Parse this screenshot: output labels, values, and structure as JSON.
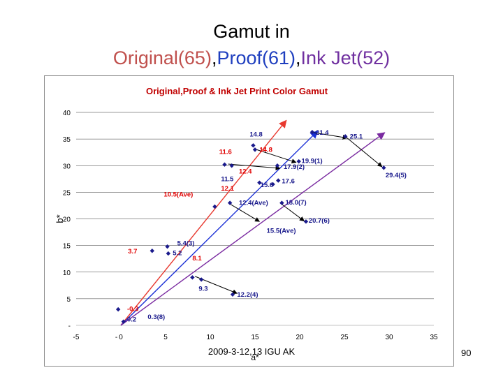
{
  "slide": {
    "title_line1": "Gamut in",
    "title_parts": [
      {
        "text": "Original(65)",
        "color": "#c0504d"
      },
      {
        "text": ",",
        "color": "#000000"
      },
      {
        "text": "Proof(61)",
        "color": "#1f3fbf"
      },
      {
        "text": ",",
        "color": "#000000"
      },
      {
        "text": "Ink Jet(52)",
        "color": "#7030a0"
      }
    ],
    "footer": "2009-3-12,13 IGU AK",
    "page_number": "90"
  },
  "colors": {
    "original": "#e8392f",
    "proof": "#1a2fd6",
    "inkjet": "#7a2aa0",
    "marker": "#1a1a8c",
    "label": "#1a1a8c",
    "label_red": "#e00000",
    "chart_title": "#c00000"
  },
  "chart_data": {
    "type": "scatter",
    "title": "Original,Proof & Ink Jet Print Color Gamut",
    "xlabel": "a*",
    "ylabel": "b*",
    "xlim": [
      -5,
      35
    ],
    "ylim": [
      0,
      40
    ],
    "xticks": [
      "-5",
      "-",
      "0",
      "5",
      "10",
      "15",
      "20",
      "25",
      "30",
      "35"
    ],
    "xtick_values": [
      -5,
      -0.5,
      0,
      5,
      10,
      15,
      20,
      25,
      30,
      35
    ],
    "yticks": [
      "-",
      "5",
      "10",
      "15",
      "20",
      "25",
      "30",
      "35",
      "40"
    ],
    "ytick_values": [
      0,
      5,
      10,
      15,
      20,
      25,
      30,
      35,
      40
    ],
    "grid": "horizontal",
    "points": [
      {
        "x": -0.3,
        "y": 3.0
      },
      {
        "x": 0.3,
        "y": 0.7
      },
      {
        "x": 3.5,
        "y": 14.0
      },
      {
        "x": 5.2,
        "y": 14.8
      },
      {
        "x": 5.3,
        "y": 13.5
      },
      {
        "x": 8.0,
        "y": 9.0
      },
      {
        "x": 9.0,
        "y": 8.6
      },
      {
        "x": 12.5,
        "y": 5.8
      },
      {
        "x": 10.5,
        "y": 22.3
      },
      {
        "x": 12.2,
        "y": 23.0
      },
      {
        "x": 11.6,
        "y": 30.2
      },
      {
        "x": 12.4,
        "y": 30.0
      },
      {
        "x": 14.8,
        "y": 33.8
      },
      {
        "x": 15.0,
        "y": 33.0
      },
      {
        "x": 15.5,
        "y": 26.8
      },
      {
        "x": 17.0,
        "y": 26.5
      },
      {
        "x": 17.6,
        "y": 27.2
      },
      {
        "x": 18.0,
        "y": 23.0
      },
      {
        "x": 17.5,
        "y": 30.0
      },
      {
        "x": 19.9,
        "y": 30.8
      },
      {
        "x": 21.4,
        "y": 36.3
      },
      {
        "x": 25.1,
        "y": 35.5
      },
      {
        "x": 29.4,
        "y": 29.6
      },
      {
        "x": 20.7,
        "y": 19.5
      }
    ],
    "lines": [
      {
        "series": "original",
        "x": [
          0.0,
          18.5
        ],
        "y": [
          0.0,
          38.5
        ]
      },
      {
        "series": "proof",
        "x": [
          0.0,
          22.0
        ],
        "y": [
          0.0,
          36.5
        ]
      },
      {
        "series": "inkjet",
        "x": [
          0.0,
          29.5
        ],
        "y": [
          0.0,
          36.2
        ]
      }
    ],
    "arrows": [
      {
        "x": [
          12.3,
          15.5
        ],
        "y": [
          22.7,
          19.5
        ]
      },
      {
        "x": [
          8.3,
          13.0
        ],
        "y": [
          9.2,
          6.0
        ]
      },
      {
        "x": [
          12.0,
          17.8
        ],
        "y": [
          30.3,
          29.5
        ]
      },
      {
        "x": 0,
        "y": 0,
        "comment": ""
      },
      {
        "x": [
          15.2,
          19.6
        ],
        "y": [
          33.0,
          30.6
        ]
      },
      {
        "x": [
          21.6,
          25.3
        ],
        "y": [
          36.2,
          35.2
        ]
      },
      {
        "x": [
          25.3,
          29.2
        ],
        "y": [
          35.2,
          29.8
        ]
      },
      {
        "x": [
          17.8,
          20.5
        ],
        "y": [
          23.0,
          19.6
        ]
      }
    ],
    "annotations": [
      {
        "text": "-0.3",
        "x": 0.7,
        "y": 2.7,
        "tone": "red"
      },
      {
        "text": "0.2",
        "x": 0.7,
        "y": 0.7,
        "tone": "navy"
      },
      {
        "text": "0.3(8)",
        "x": 3.0,
        "y": 1.2,
        "tone": "navy"
      },
      {
        "text": "3.7",
        "x": 0.8,
        "y": 13.5,
        "tone": "red"
      },
      {
        "text": "5.4(3)",
        "x": 6.3,
        "y": 15.0,
        "tone": "navy"
      },
      {
        "text": "5.2",
        "x": 5.8,
        "y": 13.2,
        "tone": "navy"
      },
      {
        "text": "8.1",
        "x": 8.0,
        "y": 12.2,
        "tone": "red"
      },
      {
        "text": "9.3",
        "x": 8.7,
        "y": 6.5,
        "tone": "navy"
      },
      {
        "text": "12.2(4)",
        "x": 13.0,
        "y": 5.4,
        "tone": "navy"
      },
      {
        "text": "10.5(Ave)",
        "x": 4.8,
        "y": 24.2,
        "tone": "red"
      },
      {
        "text": "12.4(Ave)",
        "x": 13.2,
        "y": 22.6,
        "tone": "navy"
      },
      {
        "text": "15.5(Ave)",
        "x": 16.3,
        "y": 17.4,
        "tone": "navy"
      },
      {
        "text": "11.5",
        "x": 11.2,
        "y": 27.1,
        "tone": "navy"
      },
      {
        "text": "12.1",
        "x": 11.2,
        "y": 25.3,
        "tone": "red"
      },
      {
        "text": "12.4",
        "x": 13.2,
        "y": 28.5,
        "tone": "red"
      },
      {
        "text": "11.6",
        "x": 11.0,
        "y": 32.2,
        "tone": "red"
      },
      {
        "text": "14.8",
        "x": 14.4,
        "y": 35.5,
        "tone": "navy"
      },
      {
        "text": "14.8",
        "x": 15.5,
        "y": 32.6,
        "tone": "red"
      },
      {
        "text": "15.6",
        "x": 15.6,
        "y": 26.0,
        "tone": "navy"
      },
      {
        "text": "17.6",
        "x": 18.0,
        "y": 26.7,
        "tone": "navy"
      },
      {
        "text": "17.9(2)",
        "x": 18.2,
        "y": 29.4,
        "tone": "navy"
      },
      {
        "text": "19.9(1)",
        "x": 20.2,
        "y": 30.5,
        "tone": "navy"
      },
      {
        "text": "21.4",
        "x": 21.8,
        "y": 35.8,
        "tone": "navy"
      },
      {
        "text": "25.1",
        "x": 25.6,
        "y": 35.1,
        "tone": "navy"
      },
      {
        "text": "29.4(5)",
        "x": 29.6,
        "y": 27.8,
        "tone": "navy"
      },
      {
        "text": "18.0(7)",
        "x": 18.4,
        "y": 22.7,
        "tone": "navy"
      },
      {
        "text": "20.7(6)",
        "x": 21.0,
        "y": 19.3,
        "tone": "navy"
      }
    ]
  }
}
